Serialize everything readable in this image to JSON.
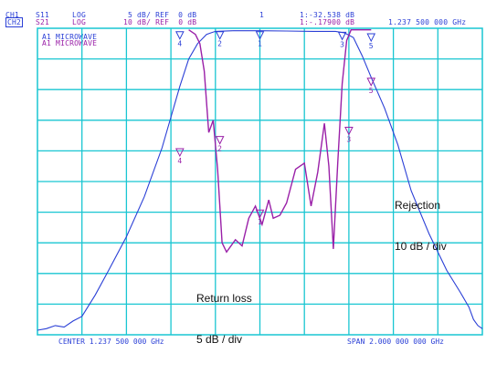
{
  "header": {
    "ch1": {
      "channel": "CH1",
      "param": "S11",
      "format": "LOG",
      "scale": "5 dB/ REF  0 dB"
    },
    "ch2": {
      "channel": "CH2",
      "param": "S21",
      "format": "LOG",
      "scale": "10 dB/ REF  0 dB"
    },
    "marker_readout_1": "1:-32.538 dB",
    "marker_readout_2": "1:-.17900 dB",
    "marker_frequency": "1.237 500 000 GHz",
    "active_marker": "1"
  },
  "trace_labels": [
    "A1 MICROWAVE",
    "A1 MICROWAVE"
  ],
  "annotations": {
    "rejection": [
      "Rejection",
      "10 dB / div"
    ],
    "return_loss": [
      "Return loss",
      "5 dB / div"
    ]
  },
  "footer": {
    "center": "CENTER 1.237 500 000 GHz",
    "span": "SPAN 2.000 000 000 GHz"
  },
  "colors": {
    "grid": "#19c6d2",
    "s21_trace": "#2a3fd6",
    "s11_trace": "#9a20a8",
    "text_ch1": "#2a3fd6",
    "text_ch2": "#9a20a8",
    "background": "#ffffff"
  },
  "chart_data": {
    "type": "line",
    "xlabel": "",
    "ylabel": "",
    "x_divisions": 10,
    "y_divisions": 10,
    "grid": true,
    "series": [
      {
        "name": "S21",
        "x_div": [
          0.0,
          0.2,
          0.4,
          0.6,
          0.8,
          1.0,
          1.3,
          1.6,
          2.0,
          2.4,
          2.8,
          3.0,
          3.2,
          3.4,
          3.6,
          3.8,
          3.9,
          4.0,
          4.4,
          5.0,
          5.6,
          6.2,
          6.7,
          6.9,
          7.1,
          7.3,
          7.5,
          7.8,
          8.1,
          8.4,
          8.8,
          9.2,
          9.5,
          9.7,
          9.8,
          9.9,
          10.0
        ],
        "y_div": [
          9.85,
          9.8,
          9.7,
          9.75,
          9.55,
          9.4,
          8.7,
          7.9,
          6.8,
          5.5,
          3.9,
          2.9,
          1.9,
          1.0,
          0.5,
          0.2,
          0.15,
          0.1,
          0.08,
          0.08,
          0.09,
          0.1,
          0.1,
          0.15,
          0.3,
          0.9,
          1.6,
          2.6,
          3.8,
          5.3,
          6.7,
          7.9,
          8.6,
          9.1,
          9.5,
          9.7,
          9.8
        ]
      },
      {
        "name": "S11",
        "x_div": [
          3.4,
          3.55,
          3.65,
          3.75,
          3.85,
          3.95,
          4.05,
          4.15,
          4.25,
          4.45,
          4.6,
          4.75,
          4.9,
          5.05,
          5.2,
          5.3,
          5.45,
          5.6,
          5.8,
          6.0,
          6.15,
          6.3,
          6.45,
          6.55,
          6.65,
          6.75,
          6.85,
          6.95,
          7.05,
          7.15,
          7.3,
          7.5
        ],
        "y_div": [
          0.05,
          0.2,
          0.5,
          1.4,
          3.4,
          3.0,
          4.6,
          7.0,
          7.3,
          6.9,
          7.1,
          6.2,
          5.8,
          6.4,
          5.6,
          6.2,
          6.1,
          5.7,
          4.6,
          4.4,
          5.8,
          4.7,
          3.1,
          4.5,
          7.2,
          4.4,
          1.8,
          0.4,
          0.05,
          0.05,
          0.05,
          0.05
        ]
      }
    ],
    "markers": [
      {
        "label": "1",
        "trace": "S21",
        "x_div": 5.0,
        "y_div": 0.08
      },
      {
        "label": "2",
        "trace": "S21",
        "x_div": 4.1,
        "y_div": 0.08
      },
      {
        "label": "3",
        "trace": "S21",
        "x_div": 6.85,
        "y_div": 0.1
      },
      {
        "label": "4",
        "trace": "S21",
        "x_div": 3.2,
        "y_div": 0.08
      },
      {
        "label": "5",
        "trace": "S21",
        "x_div": 7.5,
        "y_div": 0.15
      },
      {
        "label": "1",
        "trace": "S11",
        "x_div": 5.0,
        "y_div": 5.9
      },
      {
        "label": "2",
        "trace": "S11",
        "x_div": 4.1,
        "y_div": 3.5
      },
      {
        "label": "3",
        "trace": "S11",
        "x_div": 7.0,
        "y_div": 3.2
      },
      {
        "label": "4",
        "trace": "S11",
        "x_div": 3.2,
        "y_div": 3.9
      },
      {
        "label": "5",
        "trace": "S11",
        "x_div": 7.5,
        "y_div": 1.6
      }
    ]
  }
}
